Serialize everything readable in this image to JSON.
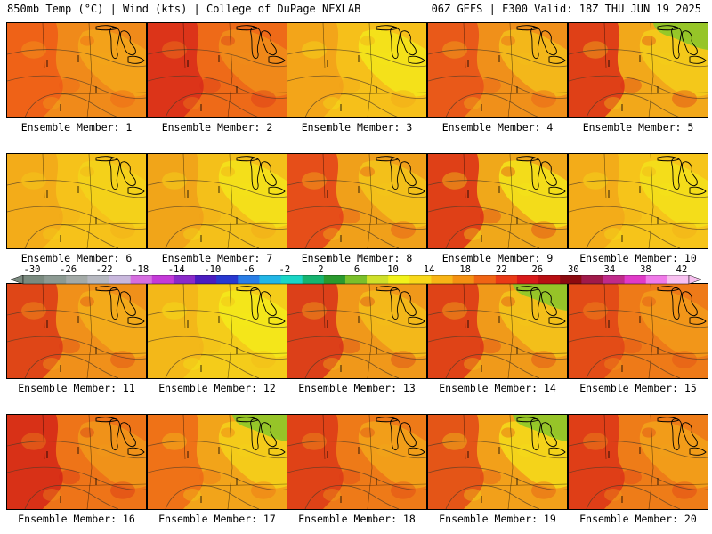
{
  "header": {
    "left": "850mb Temp (°C) | Wind (kts) | College of DuPage NEXLAB",
    "right": "06Z GEFS | F300 Valid: 18Z THU JUN 19 2025"
  },
  "colorbar": {
    "labels": [
      "-30",
      "-26",
      "-22",
      "-18",
      "-14",
      "-10",
      "-6",
      "-2",
      "2",
      "6",
      "10",
      "14",
      "18",
      "22",
      "26",
      "30",
      "34",
      "38",
      "42"
    ],
    "colors": [
      "#7a8a7f",
      "#8c9a92",
      "#a3aaa7",
      "#b6b8c0",
      "#c9b8dd",
      "#d66ee0",
      "#c43ad8",
      "#8a2ac9",
      "#4a1cc0",
      "#2838d0",
      "#2a7ee6",
      "#22b6e6",
      "#1ad6c6",
      "#16b470",
      "#2a9a2e",
      "#7ac02a",
      "#cfe02a",
      "#f2f21a",
      "#f8d81a",
      "#f8b416",
      "#f49012",
      "#f06414",
      "#ea3a16",
      "#d81a1a",
      "#b80e12",
      "#8c0a10",
      "#a01a4a",
      "#c02a8a",
      "#e03ac8",
      "#f07ae8",
      "#f8c0f0"
    ]
  },
  "panels": [
    {
      "label": "Ensemble Member: 1",
      "base": "#f08a1a",
      "hot": "#ee5a18",
      "cool": "#f4a81a",
      "green": 0
    },
    {
      "label": "Ensemble Member: 2",
      "base": "#ee6a18",
      "hot": "#d82a1a",
      "cool": "#f0901a",
      "green": 0
    },
    {
      "label": "Ensemble Member: 3",
      "base": "#f6c01a",
      "hot": "#f2a01a",
      "cool": "#f4e81a",
      "green": 0
    },
    {
      "label": "Ensemble Member: 4",
      "base": "#f0901a",
      "hot": "#e8501a",
      "cool": "#f4c01a",
      "green": 0
    },
    {
      "label": "Ensemble Member: 5",
      "base": "#f2a81a",
      "hot": "#dc2e18",
      "cool": "#f4d01a",
      "green": 1
    },
    {
      "label": "Ensemble Member: 6",
      "base": "#f6c21a",
      "hot": "#f2a81a",
      "cool": "#f4d41a",
      "green": 0
    },
    {
      "label": "Ensemble Member: 7",
      "base": "#f4c01a",
      "hot": "#f0a01a",
      "cool": "#f4e61a",
      "green": 0
    },
    {
      "label": "Ensemble Member: 8",
      "base": "#f0a01a",
      "hot": "#e4401a",
      "cool": "#f4c81a",
      "green": 0
    },
    {
      "label": "Ensemble Member: 9",
      "base": "#f0a81a",
      "hot": "#dc2e18",
      "cool": "#f4e81a",
      "green": 0
    },
    {
      "label": "Ensemble Member: 10",
      "base": "#f6c41a",
      "hot": "#f2a81a",
      "cool": "#f4e41a",
      "green": 0
    },
    {
      "label": "Ensemble Member: 11",
      "base": "#f0901a",
      "hot": "#dc3a18",
      "cool": "#f4b01a",
      "green": 0
    },
    {
      "label": "Ensemble Member: 12",
      "base": "#f4cc1a",
      "hot": "#f2b41a",
      "cool": "#f4ec1a",
      "green": 0
    },
    {
      "label": "Ensemble Member: 13",
      "base": "#f0981a",
      "hot": "#d8301a",
      "cool": "#f4c01a",
      "green": 0
    },
    {
      "label": "Ensemble Member: 14",
      "base": "#f09a1a",
      "hot": "#dc3418",
      "cool": "#f4c81a",
      "green": 1
    },
    {
      "label": "Ensemble Member: 15",
      "base": "#ee7a18",
      "hot": "#e04418",
      "cool": "#f29e1a",
      "green": 0
    },
    {
      "label": "Ensemble Member: 16",
      "base": "#ee7418",
      "hot": "#d42618",
      "cool": "#f09a1a",
      "green": 0
    },
    {
      "label": "Ensemble Member: 17",
      "base": "#f2a41a",
      "hot": "#ee6a18",
      "cool": "#f4d41a",
      "green": 1
    },
    {
      "label": "Ensemble Member: 18",
      "base": "#ee7a18",
      "hot": "#dc3818",
      "cool": "#f2a81a",
      "green": 0
    },
    {
      "label": "Ensemble Member: 19",
      "base": "#f2a01a",
      "hot": "#e24818",
      "cool": "#f4e01a",
      "green": 1
    },
    {
      "label": "Ensemble Member: 20",
      "base": "#ee7c18",
      "hot": "#dc3418",
      "cool": "#f2a41a",
      "green": 0
    }
  ]
}
